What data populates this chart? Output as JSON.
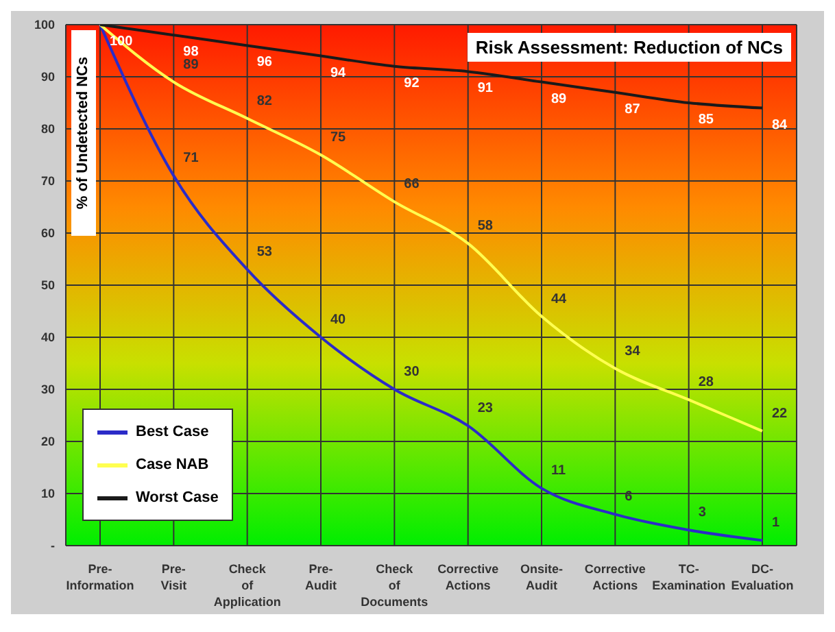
{
  "chart_data": {
    "type": "line",
    "title": "Risk Assessment: Reduction of NCs",
    "ylabel": "% of Undetected NCs",
    "categories": [
      "Pre-Information",
      "Pre-Visit",
      "Check of Application",
      "Pre-Audit",
      "Check of Documents",
      "Corrective Actions",
      "Onsite-Audit",
      "Corrective Actions",
      "TC-Examination",
      "DC-Evaluation"
    ],
    "series": [
      {
        "name": "Best Case",
        "color": "#2b2bc8",
        "values": [
          100,
          71,
          53,
          40,
          30,
          23,
          11,
          6,
          3,
          1
        ],
        "value_labels": [
          null,
          "71",
          "53",
          "40",
          "30",
          "23",
          "11",
          "6",
          "3",
          "1"
        ]
      },
      {
        "name": "Case NAB",
        "color": "#ffff50",
        "values": [
          100,
          89,
          82,
          75,
          66,
          58,
          44,
          34,
          28,
          22
        ],
        "value_labels": [
          null,
          "89",
          "82",
          "75",
          "66",
          "58",
          "44",
          "34",
          "28",
          "22"
        ]
      },
      {
        "name": "Worst Case",
        "color": "#1a1a1a",
        "values": [
          100,
          98,
          96,
          94,
          92,
          91,
          89,
          87,
          85,
          84
        ],
        "value_labels": [
          "100",
          "98",
          "96",
          "94",
          "92",
          "91",
          "89",
          "87",
          "85",
          "84"
        ]
      }
    ],
    "ylim": [
      0,
      100
    ],
    "yticks": [
      {
        "value": 0,
        "label": "-"
      },
      10,
      20,
      30,
      40,
      50,
      60,
      70,
      80,
      90,
      100
    ],
    "grid": true,
    "legend": "bottom left",
    "marker": "none",
    "line_style": "solid"
  }
}
